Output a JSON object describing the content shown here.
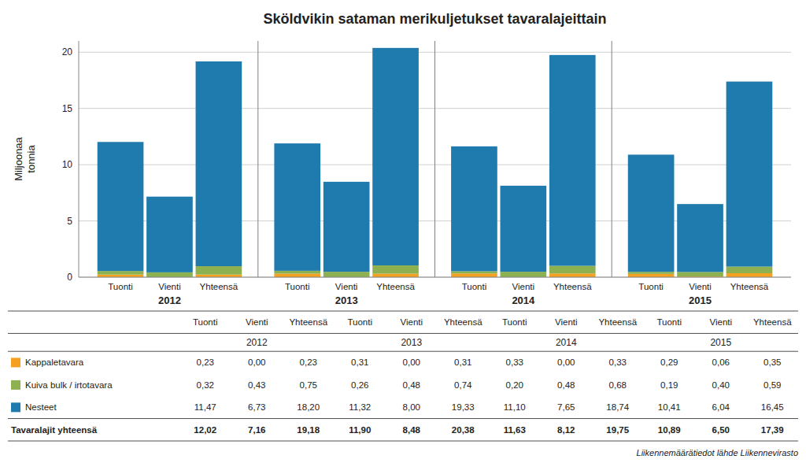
{
  "chart_data": {
    "type": "bar",
    "stacked": true,
    "grid": true,
    "title": "Sköldvikin sataman merikuljetukset tavaralajeittain",
    "y_label": "Miljoonaa\ntonnia",
    "categories": [
      "Tuonti",
      "Vienti",
      "Yhteensä",
      "Tuonti",
      "Vienti",
      "Yhteensä",
      "Tuonti",
      "Vienti",
      "Yhteensä",
      "Tuonti",
      "Vienti",
      "Yhteensä"
    ],
    "groups": [
      "2012",
      "2013",
      "2014",
      "2015"
    ],
    "ylim": [
      0,
      21
    ],
    "yticks": [
      0,
      5,
      10,
      15,
      20
    ],
    "series": [
      {
        "name": "Kappaletavara",
        "color": "#F4A020",
        "values": [
          0.23,
          0.0,
          0.23,
          0.31,
          0.0,
          0.31,
          0.33,
          0.0,
          0.33,
          0.29,
          0.06,
          0.35
        ]
      },
      {
        "name": "Kuiva bulk / irtotavara",
        "color": "#8DB050",
        "values": [
          0.32,
          0.43,
          0.75,
          0.26,
          0.48,
          0.74,
          0.2,
          0.48,
          0.68,
          0.19,
          0.4,
          0.59
        ]
      },
      {
        "name": "Nesteet",
        "color": "#1F7AAD",
        "values": [
          11.47,
          6.73,
          18.2,
          11.32,
          8.0,
          19.33,
          11.1,
          7.65,
          18.74,
          10.41,
          6.04,
          16.45
        ]
      }
    ],
    "table": {
      "rows": [
        {
          "label": "Kappaletavara",
          "values": [
            0.23,
            0.0,
            0.23,
            0.31,
            0.0,
            0.31,
            0.33,
            0.0,
            0.33,
            0.29,
            0.06,
            0.35
          ],
          "value_labels": [
            "0,23",
            "0,00",
            "0,23",
            "0,31",
            "0,00",
            "0,31",
            "0,33",
            "0,00",
            "0,33",
            "0,29",
            "0,06",
            "0,35"
          ]
        },
        {
          "label": "Kuiva bulk / irtotavara",
          "values": [
            0.32,
            0.43,
            0.75,
            0.26,
            0.48,
            0.74,
            0.2,
            0.48,
            0.68,
            0.19,
            0.4,
            0.59
          ],
          "value_labels": [
            "0,32",
            "0,43",
            "0,75",
            "0,26",
            "0,48",
            "0,74",
            "0,20",
            "0,48",
            "0,68",
            "0,19",
            "0,40",
            "0,59"
          ]
        },
        {
          "label": "Nesteet",
          "values": [
            11.47,
            6.73,
            18.2,
            11.32,
            8.0,
            19.33,
            11.1,
            7.65,
            18.74,
            10.41,
            6.04,
            16.45
          ],
          "value_labels": [
            "11,47",
            "6,73",
            "18,20",
            "11,32",
            "8,00",
            "19,33",
            "11,10",
            "7,65",
            "18,74",
            "10,41",
            "6,04",
            "16,45"
          ]
        },
        {
          "label": "Tavaralajit yhteensä",
          "values": [
            12.02,
            7.16,
            19.18,
            11.9,
            8.48,
            20.38,
            11.63,
            8.12,
            19.75,
            10.89,
            6.5,
            17.39
          ],
          "value_labels": [
            "12,02",
            "7,16",
            "19,18",
            "11,90",
            "8,48",
            "20,38",
            "11,63",
            "8,12",
            "19,75",
            "10,89",
            "6,50",
            "17,39"
          ]
        }
      ]
    },
    "footnote": "Liikennemäärätiedot lähde Liikennevirasto"
  }
}
